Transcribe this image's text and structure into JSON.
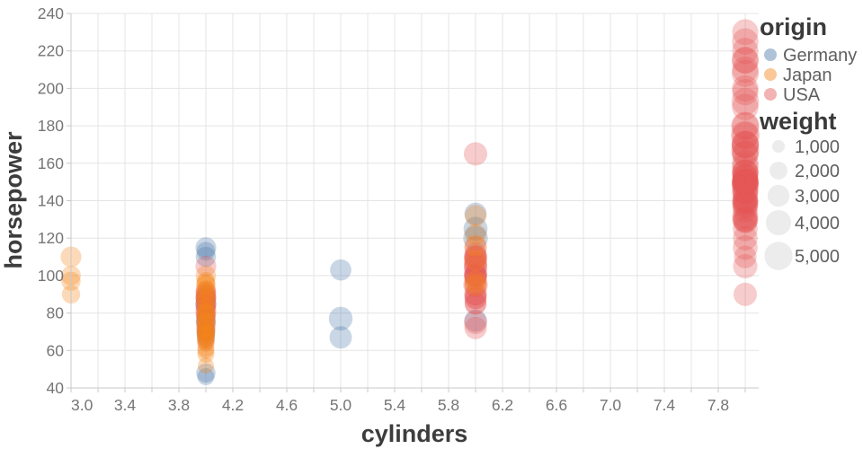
{
  "chart_data": {
    "type": "scatter",
    "title": "",
    "xlabel": "cylinders",
    "ylabel": "horsepower",
    "x_field": "cylinders",
    "y_field": "horsepower",
    "color_field": "origin",
    "size_field": "weight",
    "xlim": [
      3.0,
      8.1
    ],
    "ylim": [
      40,
      240
    ],
    "grid": true,
    "x_tick_step": 0.2,
    "x_label_values": [
      "3.0",
      "3.4",
      "3.8",
      "4.2",
      "4.6",
      "5.0",
      "5.4",
      "5.8",
      "6.2",
      "6.6",
      "7.0",
      "7.4",
      "7.8"
    ],
    "y_tick_values": [
      "40",
      "60",
      "80",
      "100",
      "120",
      "140",
      "160",
      "180",
      "200",
      "220",
      "240"
    ],
    "legend_position": "right",
    "legend": {
      "origin_title": "origin",
      "origin_entries": [
        {
          "label": "Germany",
          "color": "#4c78a8"
        },
        {
          "label": "Japan",
          "color": "#f58518"
        },
        {
          "label": "USA",
          "color": "#e45756"
        }
      ],
      "weight_title": "weight",
      "weight_entries": [
        {
          "label": "1,000",
          "value": 1000
        },
        {
          "label": "2,000",
          "value": 2000
        },
        {
          "label": "3,000",
          "value": 3000
        },
        {
          "label": "4,000",
          "value": 4000
        },
        {
          "label": "5,000",
          "value": 5000
        }
      ]
    },
    "style": {
      "point_opacity": 0.3,
      "swatch_opacity": 0.45,
      "size_scale": 0.222,
      "grid_color": "#e4e4e4",
      "domain_color": "#c8c8c8",
      "tick_label_color": "#757575",
      "title_color": "#3d3d3d",
      "legend_label_color": "#5f5f5f",
      "size_legend_fill": "#ececec"
    },
    "points_columns": [
      "cylinders",
      "horsepower",
      "weight",
      "origin"
    ],
    "points": [
      [
        3,
        97,
        2330,
        "Japan"
      ],
      [
        3,
        90,
        2124,
        "Japan"
      ],
      [
        3,
        110,
        2720,
        "Japan"
      ],
      [
        3,
        100,
        2420,
        "Japan"
      ],
      [
        5,
        103,
        2830,
        "Germany"
      ],
      [
        5,
        77,
        3530,
        "Germany"
      ],
      [
        5,
        67,
        3140,
        "Germany"
      ],
      [
        4,
        46,
        1835,
        "Germany"
      ],
      [
        4,
        48,
        2335,
        "Germany"
      ],
      [
        4,
        67,
        2065,
        "Germany"
      ],
      [
        4,
        69,
        2189,
        "Germany"
      ],
      [
        4,
        70,
        2150,
        "Germany"
      ],
      [
        4,
        71,
        1825,
        "Germany"
      ],
      [
        4,
        74,
        2190,
        "Germany"
      ],
      [
        4,
        76,
        2511,
        "Germany"
      ],
      [
        4,
        78,
        2188,
        "Germany"
      ],
      [
        4,
        83,
        2219,
        "Germany"
      ],
      [
        4,
        85,
        2855,
        "Germany"
      ],
      [
        4,
        88,
        2605,
        "Germany"
      ],
      [
        4,
        90,
        2123,
        "Germany"
      ],
      [
        4,
        110,
        2600,
        "Germany"
      ],
      [
        4,
        113,
        2234,
        "Germany"
      ],
      [
        4,
        115,
        2694,
        "Germany"
      ],
      [
        6,
        133,
        3140,
        "Germany"
      ],
      [
        6,
        125,
        3620,
        "Germany"
      ],
      [
        6,
        120,
        3820,
        "Germany"
      ],
      [
        6,
        76,
        3160,
        "Germany"
      ],
      [
        4,
        64,
        1875,
        "USA"
      ],
      [
        4,
        66,
        1800,
        "USA"
      ],
      [
        4,
        70,
        1937,
        "USA"
      ],
      [
        4,
        71,
        1990,
        "USA"
      ],
      [
        4,
        72,
        2408,
        "USA"
      ],
      [
        4,
        75,
        2542,
        "USA"
      ],
      [
        4,
        78,
        2190,
        "USA"
      ],
      [
        4,
        79,
        2420,
        "USA"
      ],
      [
        4,
        80,
        2720,
        "USA"
      ],
      [
        4,
        82,
        2720,
        "USA"
      ],
      [
        4,
        84,
        2635,
        "USA"
      ],
      [
        4,
        85,
        2585,
        "USA"
      ],
      [
        4,
        86,
        2395,
        "USA"
      ],
      [
        4,
        88,
        2720,
        "USA"
      ],
      [
        4,
        88,
        2605,
        "USA"
      ],
      [
        4,
        90,
        2678,
        "USA"
      ],
      [
        4,
        91,
        2556,
        "USA"
      ],
      [
        4,
        92,
        2620,
        "USA"
      ],
      [
        4,
        105,
        2725,
        "USA"
      ],
      [
        6,
        165,
        3445,
        "USA"
      ],
      [
        6,
        72,
        3158,
        "USA"
      ],
      [
        6,
        75,
        3432,
        "USA"
      ],
      [
        6,
        85,
        3070,
        "USA"
      ],
      [
        6,
        85,
        2945,
        "USA"
      ],
      [
        6,
        88,
        3021,
        "USA"
      ],
      [
        6,
        88,
        3139,
        "USA"
      ],
      [
        6,
        90,
        3211,
        "USA"
      ],
      [
        6,
        90,
        3085,
        "USA"
      ],
      [
        6,
        95,
        3155,
        "USA"
      ],
      [
        6,
        95,
        3785,
        "USA"
      ],
      [
        6,
        98,
        3102,
        "USA"
      ],
      [
        6,
        100,
        3282,
        "USA"
      ],
      [
        6,
        100,
        3288,
        "USA"
      ],
      [
        6,
        100,
        3353,
        "USA"
      ],
      [
        6,
        100,
        2945,
        "USA"
      ],
      [
        6,
        102,
        3360,
        "USA"
      ],
      [
        6,
        105,
        3459,
        "USA"
      ],
      [
        6,
        105,
        3380,
        "USA"
      ],
      [
        6,
        107,
        3160,
        "USA"
      ],
      [
        6,
        108,
        3288,
        "USA"
      ],
      [
        6,
        110,
        3360,
        "USA"
      ],
      [
        6,
        110,
        3039,
        "USA"
      ],
      [
        6,
        110,
        3365,
        "USA"
      ],
      [
        6,
        112,
        2933,
        "USA"
      ],
      [
        6,
        115,
        3245,
        "USA"
      ],
      [
        8,
        90,
        3420,
        "USA"
      ],
      [
        8,
        105,
        3725,
        "USA"
      ],
      [
        8,
        110,
        3221,
        "USA"
      ],
      [
        8,
        115,
        3880,
        "USA"
      ],
      [
        8,
        120,
        3820,
        "USA"
      ],
      [
        8,
        125,
        3900,
        "USA"
      ],
      [
        8,
        129,
        3725,
        "USA"
      ],
      [
        8,
        130,
        3504,
        "USA"
      ],
      [
        8,
        130,
        4295,
        "USA"
      ],
      [
        8,
        130,
        3870,
        "USA"
      ],
      [
        8,
        132,
        4220,
        "USA"
      ],
      [
        8,
        135,
        3830,
        "USA"
      ],
      [
        8,
        137,
        4042,
        "USA"
      ],
      [
        8,
        138,
        4080,
        "USA"
      ],
      [
        8,
        139,
        4382,
        "USA"
      ],
      [
        8,
        139,
        3205,
        "USA"
      ],
      [
        8,
        140,
        4080,
        "USA"
      ],
      [
        8,
        140,
        4215,
        "USA"
      ],
      [
        8,
        140,
        3449,
        "USA"
      ],
      [
        8,
        142,
        4054,
        "USA"
      ],
      [
        8,
        145,
        4440,
        "USA"
      ],
      [
        8,
        145,
        3880,
        "USA"
      ],
      [
        8,
        145,
        4055,
        "USA"
      ],
      [
        8,
        148,
        4657,
        "USA"
      ],
      [
        8,
        149,
        4363,
        "USA"
      ],
      [
        8,
        150,
        4699,
        "USA"
      ],
      [
        8,
        150,
        4457,
        "USA"
      ],
      [
        8,
        150,
        4135,
        "USA"
      ],
      [
        8,
        150,
        3892,
        "USA"
      ],
      [
        8,
        150,
        4190,
        "USA"
      ],
      [
        8,
        150,
        4256,
        "USA"
      ],
      [
        8,
        150,
        3777,
        "USA"
      ],
      [
        8,
        152,
        4215,
        "USA"
      ],
      [
        8,
        153,
        4034,
        "USA"
      ],
      [
        8,
        153,
        4129,
        "USA"
      ],
      [
        8,
        155,
        4502,
        "USA"
      ],
      [
        8,
        155,
        4154,
        "USA"
      ],
      [
        8,
        155,
        4440,
        "USA"
      ],
      [
        8,
        158,
        4363,
        "USA"
      ],
      [
        8,
        160,
        4456,
        "USA"
      ],
      [
        8,
        165,
        4274,
        "USA"
      ],
      [
        8,
        165,
        4498,
        "USA"
      ],
      [
        8,
        167,
        4906,
        "USA"
      ],
      [
        8,
        170,
        4654,
        "USA"
      ],
      [
        8,
        170,
        4746,
        "USA"
      ],
      [
        8,
        170,
        4668,
        "USA"
      ],
      [
        8,
        175,
        5140,
        "USA"
      ],
      [
        8,
        175,
        4385,
        "USA"
      ],
      [
        8,
        180,
        4955,
        "USA"
      ],
      [
        8,
        180,
        4499,
        "USA"
      ],
      [
        8,
        190,
        4422,
        "USA"
      ],
      [
        8,
        193,
        4732,
        "USA"
      ],
      [
        8,
        198,
        4341,
        "USA"
      ],
      [
        8,
        200,
        4376,
        "USA"
      ],
      [
        8,
        208,
        4633,
        "USA"
      ],
      [
        8,
        210,
        4382,
        "USA"
      ],
      [
        8,
        215,
        4615,
        "USA"
      ],
      [
        8,
        215,
        4312,
        "USA"
      ],
      [
        8,
        220,
        4354,
        "USA"
      ],
      [
        8,
        225,
        4425,
        "USA"
      ],
      [
        8,
        230,
        4278,
        "USA"
      ],
      [
        4,
        52,
        1649,
        "Japan"
      ],
      [
        4,
        58,
        1825,
        "Japan"
      ],
      [
        4,
        60,
        1834,
        "Japan"
      ],
      [
        4,
        61,
        1773,
        "Japan"
      ],
      [
        4,
        65,
        1773,
        "Japan"
      ],
      [
        4,
        65,
        1975,
        "Japan"
      ],
      [
        4,
        67,
        1950,
        "Japan"
      ],
      [
        4,
        68,
        1985,
        "Japan"
      ],
      [
        4,
        69,
        2135,
        "Japan"
      ],
      [
        4,
        70,
        1945,
        "Japan"
      ],
      [
        4,
        70,
        2120,
        "Japan"
      ],
      [
        4,
        72,
        2155,
        "Japan"
      ],
      [
        4,
        75,
        2155,
        "Japan"
      ],
      [
        4,
        75,
        2171,
        "Japan"
      ],
      [
        4,
        76,
        2100,
        "Japan"
      ],
      [
        4,
        79,
        2255,
        "Japan"
      ],
      [
        4,
        80,
        2126,
        "Japan"
      ],
      [
        4,
        81,
        2145,
        "Japan"
      ],
      [
        4,
        83,
        2075,
        "Japan"
      ],
      [
        4,
        86,
        2220,
        "Japan"
      ],
      [
        4,
        88,
        2500,
        "Japan"
      ],
      [
        4,
        90,
        2265,
        "Japan"
      ],
      [
        4,
        92,
        2288,
        "Japan"
      ],
      [
        4,
        95,
        2375,
        "Japan"
      ],
      [
        4,
        96,
        2189,
        "Japan"
      ],
      [
        4,
        97,
        2155,
        "Japan"
      ],
      [
        4,
        100,
        2615,
        "Japan"
      ],
      [
        6,
        122,
        2807,
        "Japan"
      ],
      [
        6,
        116,
        2930,
        "Japan"
      ],
      [
        6,
        108,
        2930,
        "Japan"
      ],
      [
        6,
        97,
        2815,
        "Japan"
      ],
      [
        6,
        95,
        3102,
        "Japan"
      ],
      [
        6,
        132,
        2910,
        "Japan"
      ]
    ]
  }
}
